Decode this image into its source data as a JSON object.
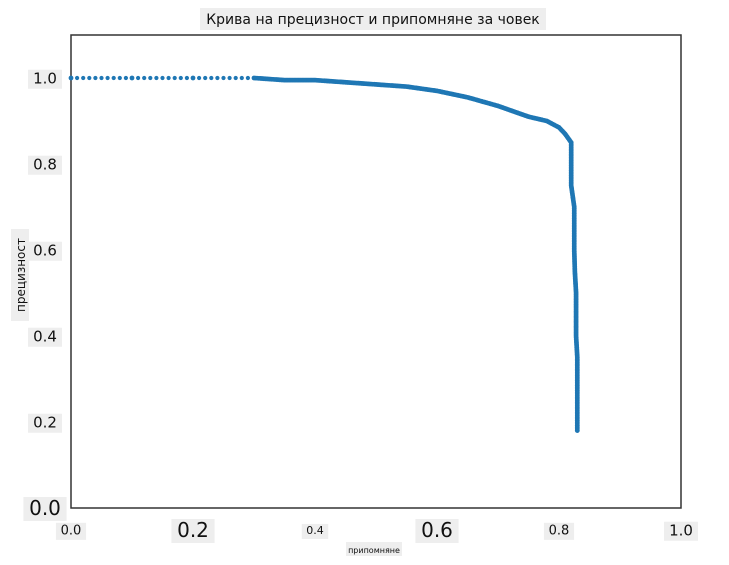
{
  "chart_data": {
    "type": "scatter",
    "title": "Крива на прецизност и припомняне за човек",
    "xlabel": "припомняне",
    "ylabel": "прецизност",
    "xlim": [
      0.0,
      1.0
    ],
    "ylim": [
      0.0,
      1.1
    ],
    "grid": false,
    "legend": "none",
    "colors": {
      "series": "#1f77b4",
      "frame": "#333333",
      "label_bg": "#eeeeee"
    },
    "x_ticks": [
      "0.0",
      "0.2",
      "0.4",
      "0.6",
      "0.8",
      "1.0"
    ],
    "y_ticks": [
      "0.0",
      "0.2",
      "0.4",
      "0.6",
      "0.8",
      "1.0"
    ],
    "series": [
      {
        "x": [
          0.0,
          0.1,
          0.2,
          0.3,
          0.35,
          0.4,
          0.45,
          0.5,
          0.55,
          0.6,
          0.65,
          0.7,
          0.75,
          0.78,
          0.8,
          0.81,
          0.82,
          0.82,
          0.82,
          0.825,
          0.825,
          0.826,
          0.828,
          0.828,
          0.83,
          0.83,
          0.83,
          0.83
        ],
        "y": [
          1.0,
          1.0,
          1.0,
          1.0,
          0.995,
          0.995,
          0.99,
          0.985,
          0.98,
          0.97,
          0.955,
          0.935,
          0.91,
          0.9,
          0.885,
          0.87,
          0.85,
          0.8,
          0.75,
          0.7,
          0.6,
          0.55,
          0.5,
          0.4,
          0.35,
          0.3,
          0.25,
          0.18
        ]
      }
    ]
  }
}
